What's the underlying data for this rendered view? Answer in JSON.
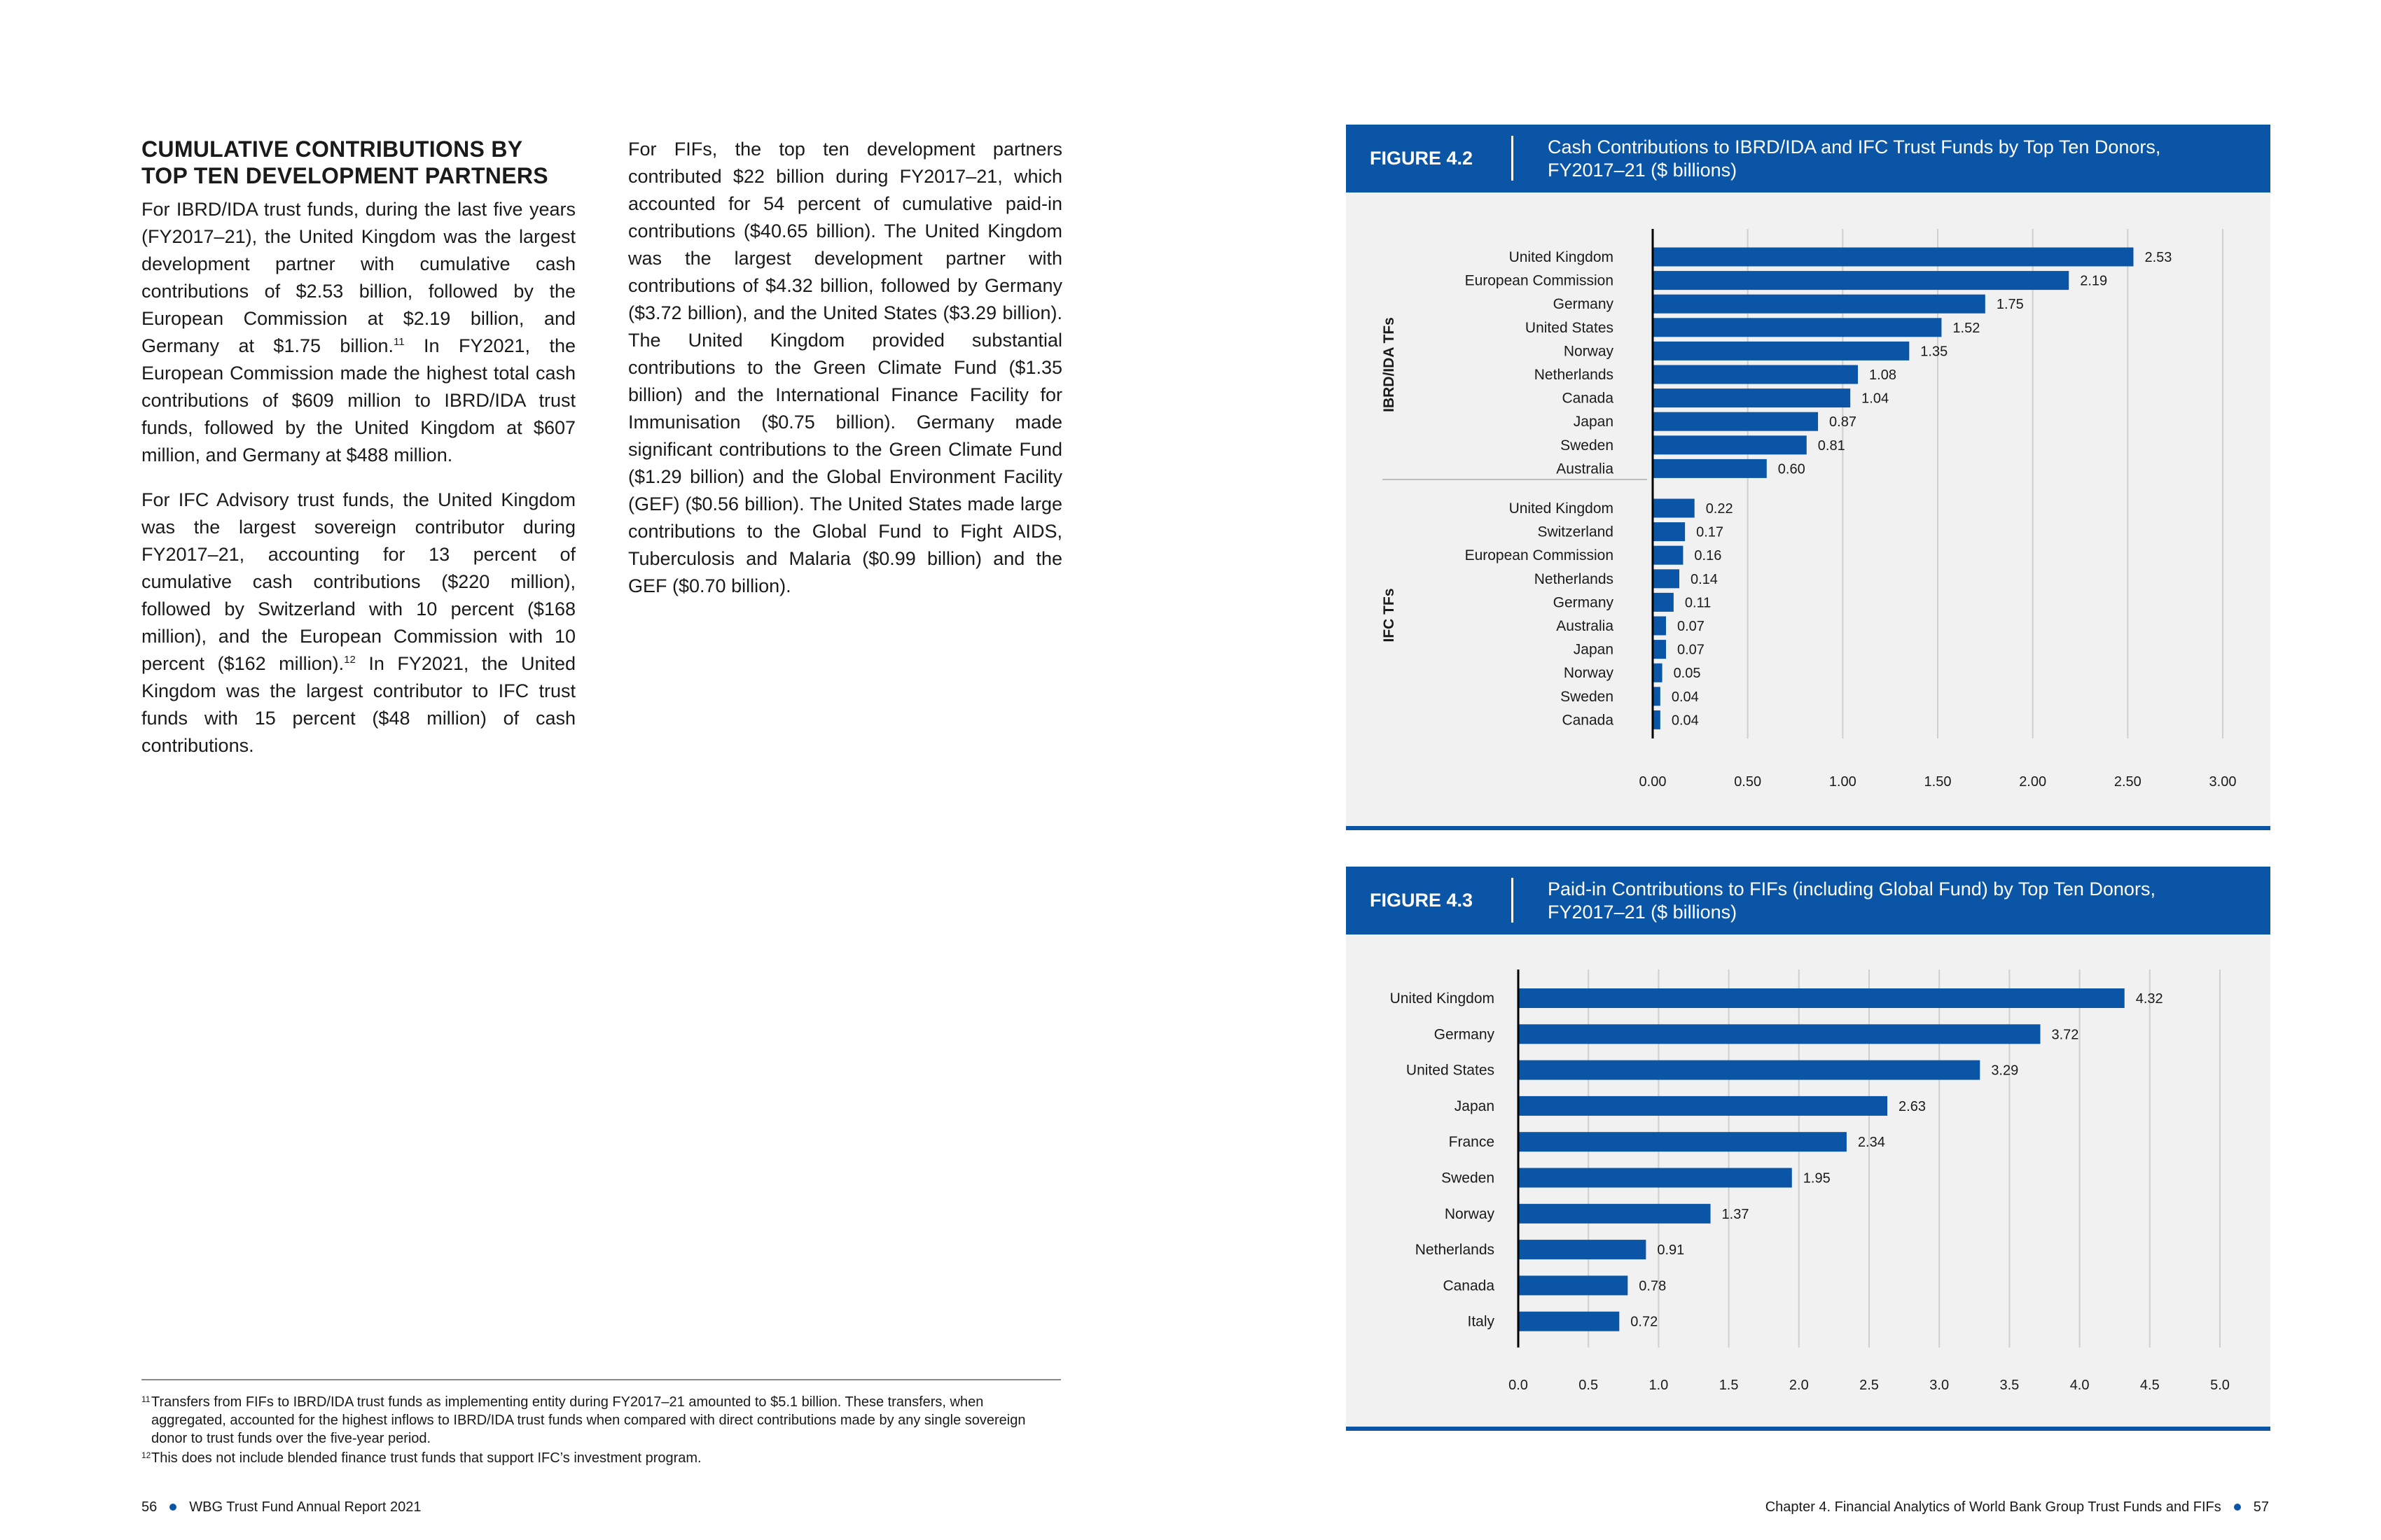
{
  "left": {
    "heading_line1": "CUMULATIVE CONTRIBUTIONS BY",
    "heading_line2": "TOP TEN DEVELOPMENT PARTNERS",
    "p1_a": "For IBRD/IDA trust funds, during the last five years (FY2017–21), the United Kingdom was the largest development partner with cumulative cash contributions of $2.53 billion, followed by the European Commission at $2.19 billion, and Germany at $1.75 billion.",
    "p1_fn": "11",
    "p1_b": " In FY2021, the European Commission made the highest total cash contributions of $609 million to IBRD/IDA trust funds, followed by the United Kingdom at $607 million, and Germany at $488 million.",
    "p2_a": "For IFC Advisory trust funds, the United Kingdom was the largest sovereign contributor during FY2017–21, accounting for 13 percent of cumulative cash contributions ($220 million), followed by Switzerland with 10 percent ($168 million), and the European Commission with 10 percent ($162 million).",
    "p2_fn": "12",
    "p2_b": " In FY2021, the United Kingdom was the largest contributor to IFC trust funds with 15 percent ($48 million) of cash contributions."
  },
  "right_col": {
    "p1": "For FIFs, the top ten development partners contributed $22 billion during FY2017–21, which accounted for 54 percent of cumulative paid-in contributions ($40.65 billion). The United Kingdom was the largest development partner with contributions of $4.32 billion, followed by Germany ($3.72 billion), and the United States ($3.29 billion). The United Kingdom provided substantial contributions to the Green Climate Fund ($1.35 billion) and the International Finance Facility for Immunisation ($0.75 billion). Germany made significant contributions to the Green Climate Fund ($1.29 billion) and the Global Environment Facility (GEF) ($0.56 billion). The United States made large contributions to the Global Fund to Fight AIDS, Tuberculosis and Malaria ($0.99 billion) and the GEF ($0.70 billion)."
  },
  "footnotes": [
    {
      "num": "11",
      "text": "Transfers from FIFs to IBRD/IDA trust funds as implementing entity during FY2017–21 amounted to $5.1 billion. These transfers, when aggregated, accounted for the highest inflows to IBRD/IDA trust funds when compared with direct contributions made by any single sovereign donor to trust funds over the five-year period."
    },
    {
      "num": "12",
      "text": "This does not include blended finance trust funds that support IFC’s investment program."
    }
  ],
  "footer": {
    "left_page": "56",
    "left_text": "WBG Trust Fund Annual Report 2021",
    "right_text": "Chapter 4. Financial Analytics of World Bank Group Trust Funds and FIFs",
    "right_page": "57"
  },
  "colors": {
    "accent": "#0b55a6",
    "panel": "#f1f1f1",
    "grid": "#cfcfcf"
  },
  "figure_4_2": {
    "label": "FIGURE 4.2",
    "title_line1": "Cash Contributions to IBRD/IDA and IFC Trust Funds by Top Ten Donors,",
    "title_line2": "FY2017–21 ($ billions)"
  },
  "figure_4_3": {
    "label": "FIGURE 4.3",
    "title_line1": "Paid-in Contributions to FIFs (including Global Fund) by Top Ten Donors,",
    "title_line2": "FY2017–21 ($ billions)"
  },
  "chart_data": [
    {
      "type": "bar",
      "orientation": "horizontal",
      "title": "Cash Contributions to IBRD/IDA and IFC Trust Funds by Top Ten Donors, FY2017–21 ($ billions)",
      "xlim": [
        0,
        3
      ],
      "ticks": [
        "0.00",
        "0.50",
        "1.00",
        "1.50",
        "2.00",
        "2.50",
        "3.00"
      ],
      "grid": true,
      "groups": [
        {
          "name": "IBRD/IDA TFs",
          "categories": [
            "United Kingdom",
            "European Commission",
            "Germany",
            "United States",
            "Norway",
            "Netherlands",
            "Canada",
            "Japan",
            "Sweden",
            "Australia"
          ],
          "values": [
            2.53,
            2.19,
            1.75,
            1.52,
            1.35,
            1.08,
            1.04,
            0.87,
            0.81,
            0.6
          ],
          "labels": [
            "2.53",
            "2.19",
            "1.75",
            "1.52",
            "1.35",
            "1.08",
            "1.04",
            "0.87",
            "0.81",
            "0.60"
          ]
        },
        {
          "name": "IFC TFs",
          "categories": [
            "United Kingdom",
            "Switzerland",
            "European Commission",
            "Netherlands",
            "Germany",
            "Australia",
            "Japan",
            "Norway",
            "Sweden",
            "Canada"
          ],
          "values": [
            0.22,
            0.17,
            0.16,
            0.14,
            0.11,
            0.07,
            0.07,
            0.05,
            0.04,
            0.04
          ],
          "labels": [
            "0.22",
            "0.17",
            "0.16",
            "0.14",
            "0.11",
            "0.07",
            "0.07",
            "0.05",
            "0.04",
            "0.04"
          ]
        }
      ]
    },
    {
      "type": "bar",
      "orientation": "horizontal",
      "title": "Paid-in Contributions to FIFs (including Global Fund) by Top Ten Donors, FY2017–21 ($ billions)",
      "xlim": [
        0,
        5
      ],
      "ticks": [
        "0.0",
        "0.5",
        "1.0",
        "1.5",
        "2.0",
        "2.5",
        "3.0",
        "3.5",
        "4.0",
        "4.5",
        "5.0"
      ],
      "grid": true,
      "categories": [
        "United Kingdom",
        "Germany",
        "United States",
        "Japan",
        "France",
        "Sweden",
        "Norway",
        "Netherlands",
        "Canada",
        "Italy"
      ],
      "values": [
        4.32,
        3.72,
        3.29,
        2.63,
        2.34,
        1.95,
        1.37,
        0.91,
        0.78,
        0.72
      ],
      "labels": [
        "4.32",
        "3.72",
        "3.29",
        "2.63",
        "2.34",
        "1.95",
        "1.37",
        "0.91",
        "0.78",
        "0.72"
      ]
    }
  ]
}
